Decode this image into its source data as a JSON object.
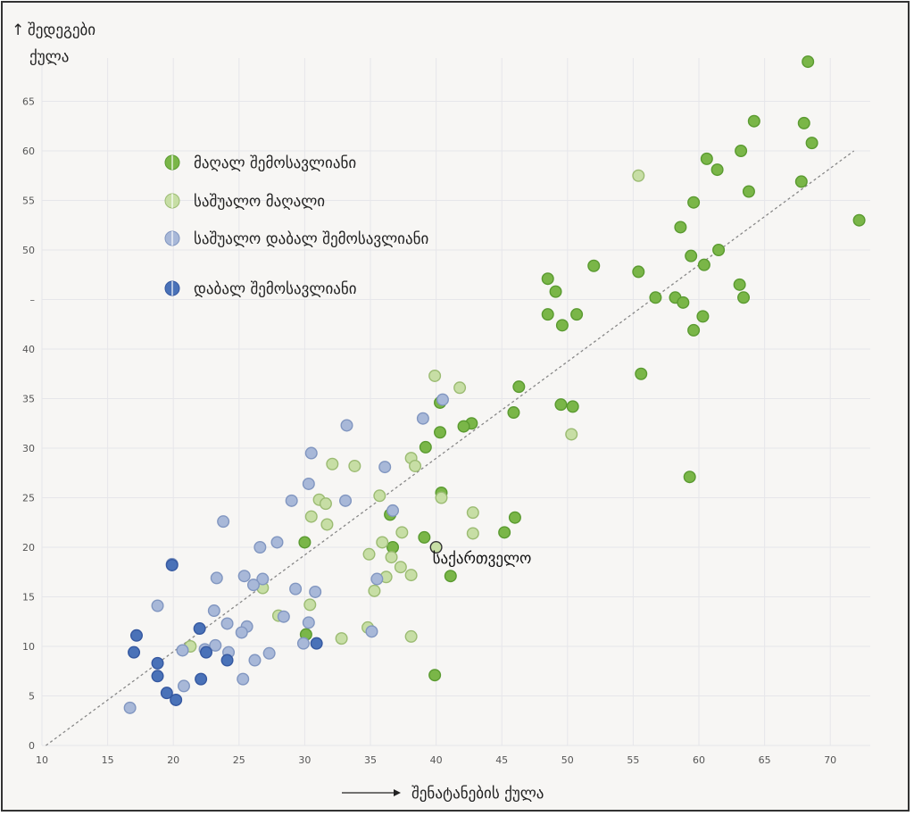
{
  "chart_data": {
    "type": "scatter",
    "title": "",
    "ylabel_line1": "შედეგები",
    "ylabel_line2": "ქულა",
    "ylabel_arrow": "↑",
    "xlabel": "შენატანების ქულა",
    "xlim": [
      10,
      73
    ],
    "ylim": [
      0,
      70
    ],
    "xticks": [
      10,
      15,
      20,
      25,
      30,
      35,
      40,
      45,
      50,
      55,
      60,
      65,
      70
    ],
    "yticks": [
      0,
      5,
      10,
      15,
      20,
      25,
      30,
      35,
      40,
      45,
      50,
      55,
      60,
      65
    ],
    "ytick_labels": [
      "0",
      "5",
      "10",
      "15",
      "20",
      "25",
      "30",
      "35",
      "40",
      "–",
      "50",
      "55",
      "60",
      "65"
    ],
    "grid": true,
    "legend_position": "top-left",
    "trendline": {
      "x1": 10.3,
      "y1": 0,
      "x2": 71.8,
      "y2": 60
    },
    "annotation": {
      "label": "საქართველო",
      "x": 40,
      "y": 20
    },
    "series": [
      {
        "name": "მაღალ შემოსავლიანი",
        "color": "#7ab648",
        "stroke": "#5a9a30",
        "points": [
          [
            68.3,
            69
          ],
          [
            64.2,
            63
          ],
          [
            68,
            62.8
          ],
          [
            68.6,
            60.8
          ],
          [
            63.2,
            60
          ],
          [
            60.6,
            59.2
          ],
          [
            61.4,
            58.1
          ],
          [
            67.8,
            56.9
          ],
          [
            63.8,
            55.9
          ],
          [
            59.6,
            54.8
          ],
          [
            58.6,
            52.3
          ],
          [
            72.2,
            53
          ],
          [
            59.4,
            49.4
          ],
          [
            61.5,
            50
          ],
          [
            60.4,
            48.5
          ],
          [
            52,
            48.4
          ],
          [
            55.4,
            47.8
          ],
          [
            48.5,
            47.1
          ],
          [
            49.1,
            45.8
          ],
          [
            63.1,
            46.5
          ],
          [
            56.7,
            45.2
          ],
          [
            58.2,
            45.2
          ],
          [
            58.8,
            44.7
          ],
          [
            63.4,
            45.2
          ],
          [
            48.5,
            43.5
          ],
          [
            50.7,
            43.5
          ],
          [
            49.6,
            42.4
          ],
          [
            60.3,
            43.3
          ],
          [
            59.6,
            41.9
          ],
          [
            55.6,
            37.5
          ],
          [
            46.3,
            36.2
          ],
          [
            40.3,
            34.6
          ],
          [
            45.9,
            33.6
          ],
          [
            49.5,
            34.4
          ],
          [
            50.4,
            34.2
          ],
          [
            42.7,
            32.5
          ],
          [
            42.1,
            32.2
          ],
          [
            40.3,
            31.6
          ],
          [
            39.2,
            30.1
          ],
          [
            59.3,
            27.1
          ],
          [
            40.4,
            25.5
          ],
          [
            36.5,
            23.3
          ],
          [
            46,
            23
          ],
          [
            45.2,
            21.5
          ],
          [
            39.1,
            21
          ],
          [
            30,
            20.5
          ],
          [
            36.7,
            20
          ],
          [
            41.1,
            17.1
          ],
          [
            30.1,
            11.2
          ],
          [
            39.9,
            7.1
          ]
        ]
      },
      {
        "name": "საშუალო მაღალი",
        "color": "#c7dea5",
        "stroke": "#9bbb72",
        "points": [
          [
            55.4,
            57.5
          ],
          [
            39.9,
            37.3
          ],
          [
            41.8,
            36.1
          ],
          [
            50.3,
            31.4
          ],
          [
            38.1,
            29
          ],
          [
            38.4,
            28.2
          ],
          [
            32.1,
            28.4
          ],
          [
            33.8,
            28.2
          ],
          [
            40.4,
            25
          ],
          [
            35.7,
            25.2
          ],
          [
            31.1,
            24.8
          ],
          [
            31.6,
            24.4
          ],
          [
            42.8,
            23.5
          ],
          [
            30.5,
            23.1
          ],
          [
            31.7,
            22.3
          ],
          [
            37.4,
            21.5
          ],
          [
            42.8,
            21.4
          ],
          [
            35.9,
            20.5
          ],
          [
            34.9,
            19.3
          ],
          [
            36.6,
            19
          ],
          [
            37.3,
            18
          ],
          [
            38.1,
            17.2
          ],
          [
            36.2,
            17
          ],
          [
            26.8,
            15.9
          ],
          [
            35.3,
            15.6
          ],
          [
            30.4,
            14.2
          ],
          [
            28,
            13.1
          ],
          [
            34.8,
            11.9
          ],
          [
            21.3,
            10
          ],
          [
            32.8,
            10.8
          ],
          [
            38.1,
            11
          ]
        ]
      },
      {
        "name": "საშუალო დაბალ შემოსავლიანი",
        "color": "#a8b8d8",
        "stroke": "#8196c0",
        "points": [
          [
            40.5,
            34.9
          ],
          [
            39,
            33
          ],
          [
            33.2,
            32.3
          ],
          [
            30.5,
            29.5
          ],
          [
            36.1,
            28.1
          ],
          [
            30.3,
            26.4
          ],
          [
            29,
            24.7
          ],
          [
            33.1,
            24.7
          ],
          [
            36.7,
            23.7
          ],
          [
            23.8,
            22.6
          ],
          [
            27.9,
            20.5
          ],
          [
            26.6,
            20
          ],
          [
            19.9,
            18.3
          ],
          [
            23.3,
            16.9
          ],
          [
            25.4,
            17.1
          ],
          [
            26.8,
            16.8
          ],
          [
            26.1,
            16.2
          ],
          [
            35.5,
            16.8
          ],
          [
            29.3,
            15.8
          ],
          [
            30.8,
            15.5
          ],
          [
            18.8,
            14.1
          ],
          [
            23.1,
            13.6
          ],
          [
            28.4,
            13
          ],
          [
            24.1,
            12.3
          ],
          [
            25.6,
            12
          ],
          [
            30.3,
            12.4
          ],
          [
            25.2,
            11.4
          ],
          [
            35.1,
            11.5
          ],
          [
            20.7,
            9.6
          ],
          [
            22.4,
            9.7
          ],
          [
            23.2,
            10.1
          ],
          [
            24.2,
            9.4
          ],
          [
            27.3,
            9.3
          ],
          [
            29.9,
            10.3
          ],
          [
            26.2,
            8.6
          ],
          [
            20.8,
            6
          ],
          [
            25.3,
            6.7
          ],
          [
            16.7,
            3.8
          ]
        ]
      },
      {
        "name": "დაბალ შემოსავლიანი",
        "color": "#4a72b8",
        "stroke": "#3558a0",
        "points": [
          [
            19.9,
            18.2
          ],
          [
            17.2,
            11.1
          ],
          [
            22,
            11.8
          ],
          [
            17,
            9.4
          ],
          [
            22.5,
            9.4
          ],
          [
            18.8,
            8.3
          ],
          [
            24.1,
            8.6
          ],
          [
            30.9,
            10.3
          ],
          [
            18.8,
            7
          ],
          [
            22.1,
            6.7
          ],
          [
            19.5,
            5.3
          ],
          [
            20.2,
            4.6
          ]
        ]
      }
    ]
  }
}
